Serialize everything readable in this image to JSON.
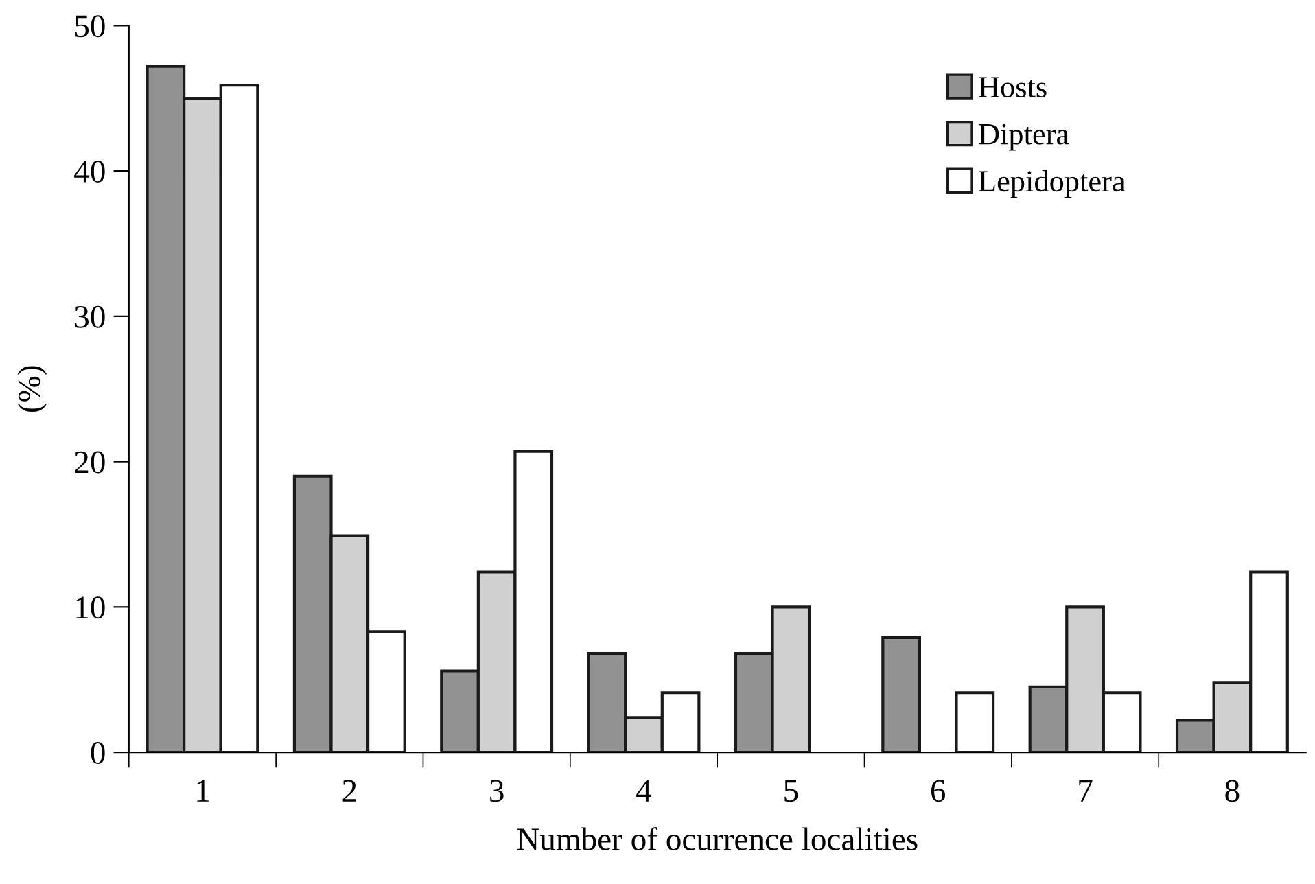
{
  "chart_data": {
    "type": "bar",
    "xlabel": "Number of ocurrence localities",
    "ylabel": "(%)",
    "categories": [
      "1",
      "2",
      "3",
      "4",
      "5",
      "6",
      "7",
      "8"
    ],
    "series": [
      {
        "name": "Hosts",
        "color": "#929292",
        "values": [
          47.2,
          19,
          5.6,
          6.8,
          6.8,
          7.9,
          4.5,
          2.2
        ]
      },
      {
        "name": "Diptera",
        "color": "#d0d0d0",
        "values": [
          45,
          14.9,
          12.4,
          2.4,
          10,
          null,
          10,
          4.8
        ]
      },
      {
        "name": "Lepidoptera",
        "color": "#ffffff",
        "values": [
          45.9,
          8.3,
          20.7,
          4.1,
          null,
          4.1,
          4.1,
          12.4
        ]
      }
    ],
    "ylim": [
      0,
      50
    ],
    "yticks": [
      0,
      10,
      20,
      30,
      40,
      50
    ],
    "grid": false,
    "legend": "top right"
  }
}
